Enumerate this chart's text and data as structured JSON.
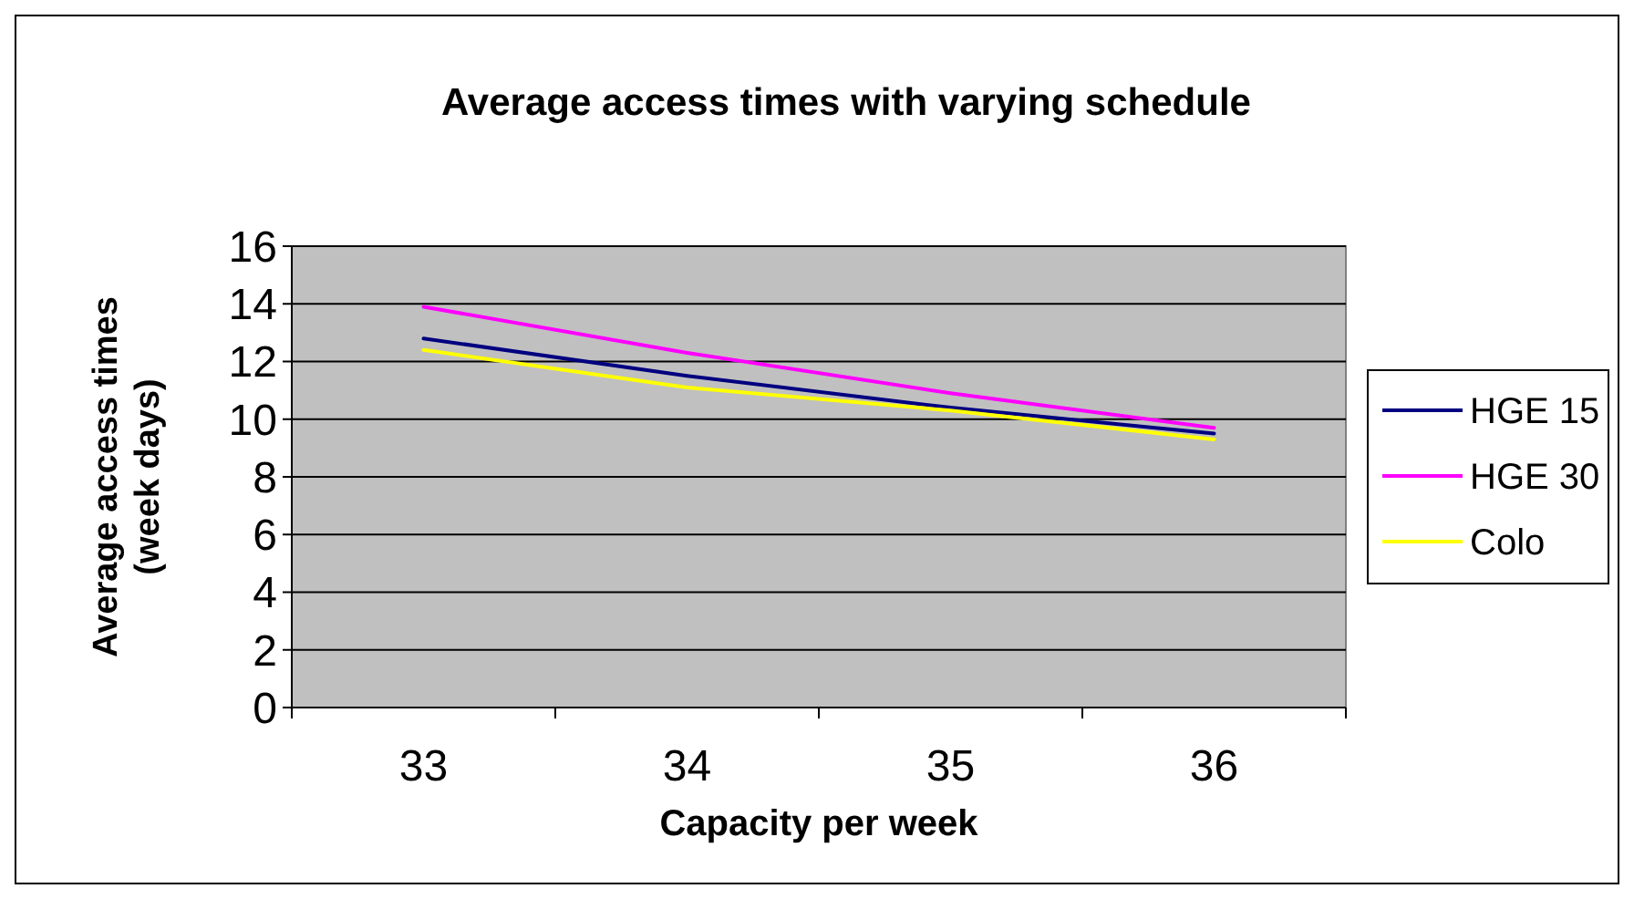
{
  "chart_data": {
    "type": "line",
    "title": "Average access times with varying schedule",
    "xlabel": "Capacity per week",
    "ylabel": "Average access times (week days)",
    "categories": [
      "33",
      "34",
      "35",
      "36"
    ],
    "series": [
      {
        "name": "HGE 15",
        "color": "#000080",
        "values": [
          12.8,
          11.5,
          10.4,
          9.5
        ]
      },
      {
        "name": "HGE 30",
        "color": "#ff00ff",
        "values": [
          13.9,
          12.3,
          10.9,
          9.7
        ]
      },
      {
        "name": "Colo",
        "color": "#ffff00",
        "values": [
          12.4,
          11.1,
          10.3,
          9.3
        ]
      }
    ],
    "ylim": [
      0,
      16
    ],
    "yticks": [
      0,
      2,
      4,
      6,
      8,
      10,
      12,
      14,
      16
    ],
    "grid": "y",
    "legend": "right",
    "marker": "none",
    "line_style": "solid"
  }
}
